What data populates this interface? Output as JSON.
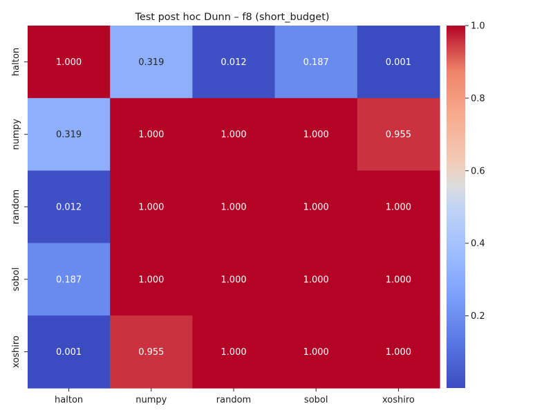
{
  "chart_data": {
    "type": "heatmap",
    "title": "Test post hoc Dunn – f8 (short_budget)",
    "xlabel": "",
    "ylabel": "",
    "x_categories": [
      "halton",
      "numpy",
      "random",
      "sobol",
      "xoshiro"
    ],
    "y_categories": [
      "halton",
      "numpy",
      "random",
      "sobol",
      "xoshiro"
    ],
    "values": [
      [
        1.0,
        0.319,
        0.012,
        0.187,
        0.001
      ],
      [
        0.319,
        1.0,
        1.0,
        1.0,
        0.955
      ],
      [
        0.012,
        1.0,
        1.0,
        1.0,
        1.0
      ],
      [
        0.187,
        1.0,
        1.0,
        1.0,
        1.0
      ],
      [
        0.001,
        0.955,
        1.0,
        1.0,
        1.0
      ]
    ],
    "value_format": "3 decimals",
    "colormap": "coolwarm",
    "colorbar": {
      "range": [
        0.001,
        1.0
      ],
      "ticks": [
        0.2,
        0.4,
        0.6,
        0.8,
        1.0
      ],
      "tick_labels": [
        "0.2",
        "0.4",
        "0.6",
        "0.8",
        "1.0"
      ]
    }
  }
}
